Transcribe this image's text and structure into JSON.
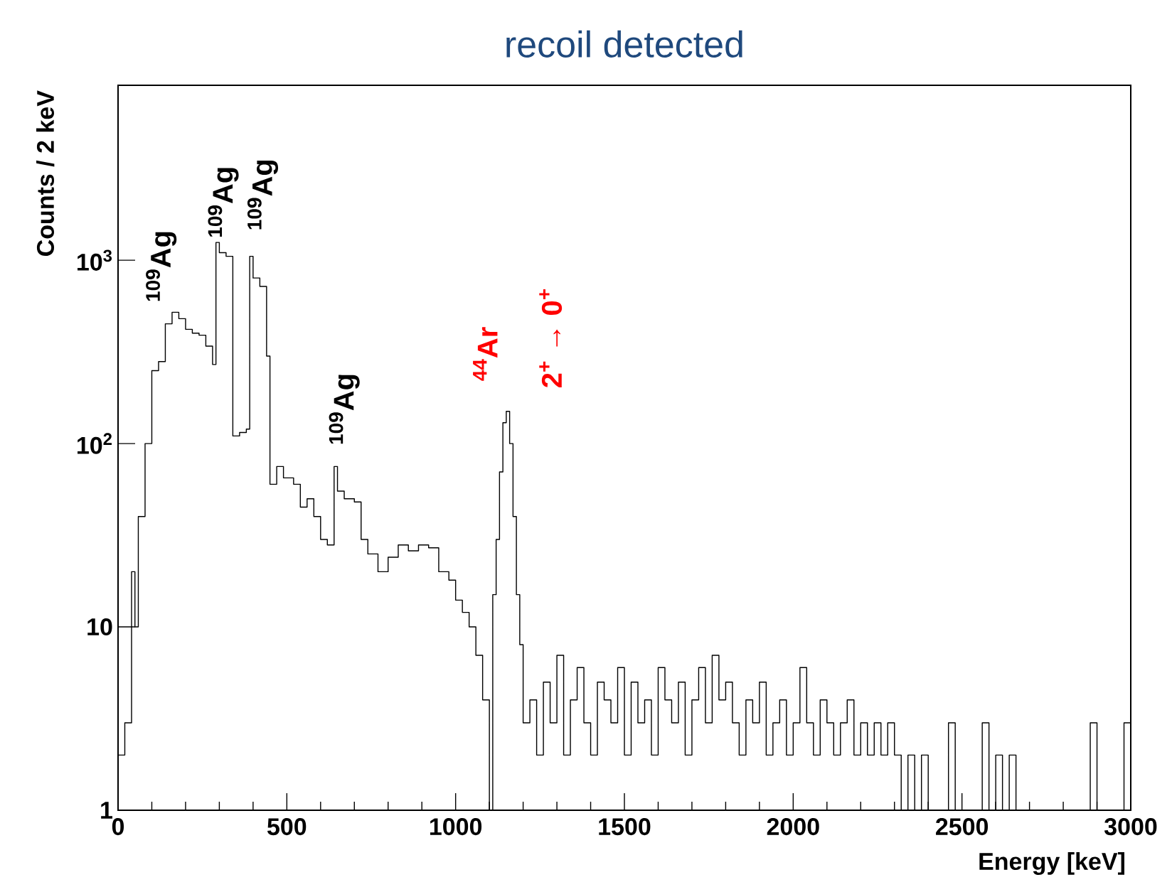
{
  "chart_data": {
    "type": "histogram",
    "title": "recoil detected",
    "xlabel": "Energy [keV]",
    "ylabel": "Counts / 2 keV",
    "color": "#000000",
    "log": "y",
    "xlim": [
      0,
      3000
    ],
    "ylim": [
      1,
      9000
    ],
    "xticks": [
      0,
      500,
      1000,
      1500,
      2000,
      2500,
      3000
    ],
    "yticks": [
      1,
      10,
      {
        "value": 100,
        "label": "10$^{2}$"
      },
      {
        "value": 1000,
        "label": "10$^{3}$"
      }
    ],
    "bins": [
      0,
      20,
      40,
      50,
      60,
      80,
      100,
      120,
      140,
      160,
      180,
      200,
      220,
      240,
      260,
      280,
      290,
      300,
      320,
      340,
      360,
      380,
      390,
      400,
      420,
      440,
      450,
      470,
      490,
      520,
      540,
      560,
      580,
      600,
      620,
      640,
      650,
      670,
      700,
      720,
      740,
      770,
      800,
      830,
      860,
      890,
      920,
      950,
      980,
      1000,
      1020,
      1040,
      1060,
      1080,
      1100,
      1110,
      1120,
      1130,
      1140,
      1150,
      1160,
      1170,
      1180,
      1190,
      1200,
      1220,
      1240,
      1260,
      1280,
      1300,
      1320,
      1340,
      1360,
      1380,
      1400,
      1420,
      1440,
      1460,
      1480,
      1500,
      1520,
      1540,
      1560,
      1580,
      1600,
      1620,
      1640,
      1660,
      1680,
      1700,
      1720,
      1740,
      1760,
      1780,
      1800,
      1820,
      1840,
      1860,
      1880,
      1900,
      1920,
      1940,
      1960,
      1980,
      2000,
      2020,
      2040,
      2060,
      2080,
      2100,
      2120,
      2140,
      2160,
      2180,
      2200,
      2220,
      2240,
      2260,
      2280,
      2300,
      2320,
      2340,
      2360,
      2380,
      2400,
      2420,
      2440,
      2460,
      2480,
      2500,
      2520,
      2540,
      2560,
      2580,
      2600,
      2620,
      2640,
      2660,
      2680,
      2700,
      2720,
      2740,
      2760,
      2780,
      2800,
      2820,
      2840,
      2860,
      2880,
      2900,
      2920,
      2940,
      2960,
      2980,
      3000
    ],
    "values": [
      2,
      3,
      20,
      10,
      40,
      100,
      250,
      280,
      450,
      520,
      480,
      420,
      400,
      390,
      340,
      270,
      1250,
      1100,
      1050,
      110,
      115,
      120,
      1050,
      800,
      720,
      300,
      60,
      75,
      65,
      60,
      45,
      50,
      40,
      30,
      28,
      75,
      55,
      50,
      48,
      30,
      25,
      20,
      24,
      28,
      26,
      28,
      27,
      20,
      18,
      14,
      12,
      10,
      7,
      4,
      1,
      15,
      30,
      70,
      130,
      150,
      100,
      40,
      15,
      8,
      3,
      4,
      2,
      5,
      3,
      7,
      2,
      4,
      6,
      3,
      2,
      5,
      4,
      3,
      6,
      2,
      5,
      3,
      4,
      2,
      6,
      4,
      3,
      5,
      2,
      4,
      6,
      3,
      7,
      4,
      5,
      3,
      2,
      4,
      3,
      5,
      2,
      3,
      4,
      2,
      3,
      6,
      3,
      2,
      4,
      3,
      2,
      3,
      4,
      2,
      3,
      2,
      3,
      2,
      3,
      2,
      1,
      2,
      1,
      2,
      1,
      1,
      1,
      3,
      1,
      1,
      1,
      1,
      3,
      1,
      2,
      1,
      2,
      1,
      1,
      1,
      1,
      1,
      1,
      1,
      1,
      1,
      1,
      1,
      3,
      1,
      1,
      1,
      1,
      3
    ],
    "annotations": [
      {
        "text": "$^{109}$Ag",
        "x": 170,
        "y": 520
      },
      {
        "text": "$^{109}$Ag",
        "x": 295,
        "y": 1250
      },
      {
        "text": "$^{109}$Ag",
        "x": 395,
        "y": 1050
      },
      {
        "text": "$^{109}$Ag",
        "x": 645,
        "y": 75
      },
      {
        "text": "$^{44}$Ar",
        "x": 1155,
        "y": 150
      },
      {
        "text": "2$^{+}$ → 0$^{+}$",
        "x": 1155,
        "y": 150
      }
    ]
  }
}
